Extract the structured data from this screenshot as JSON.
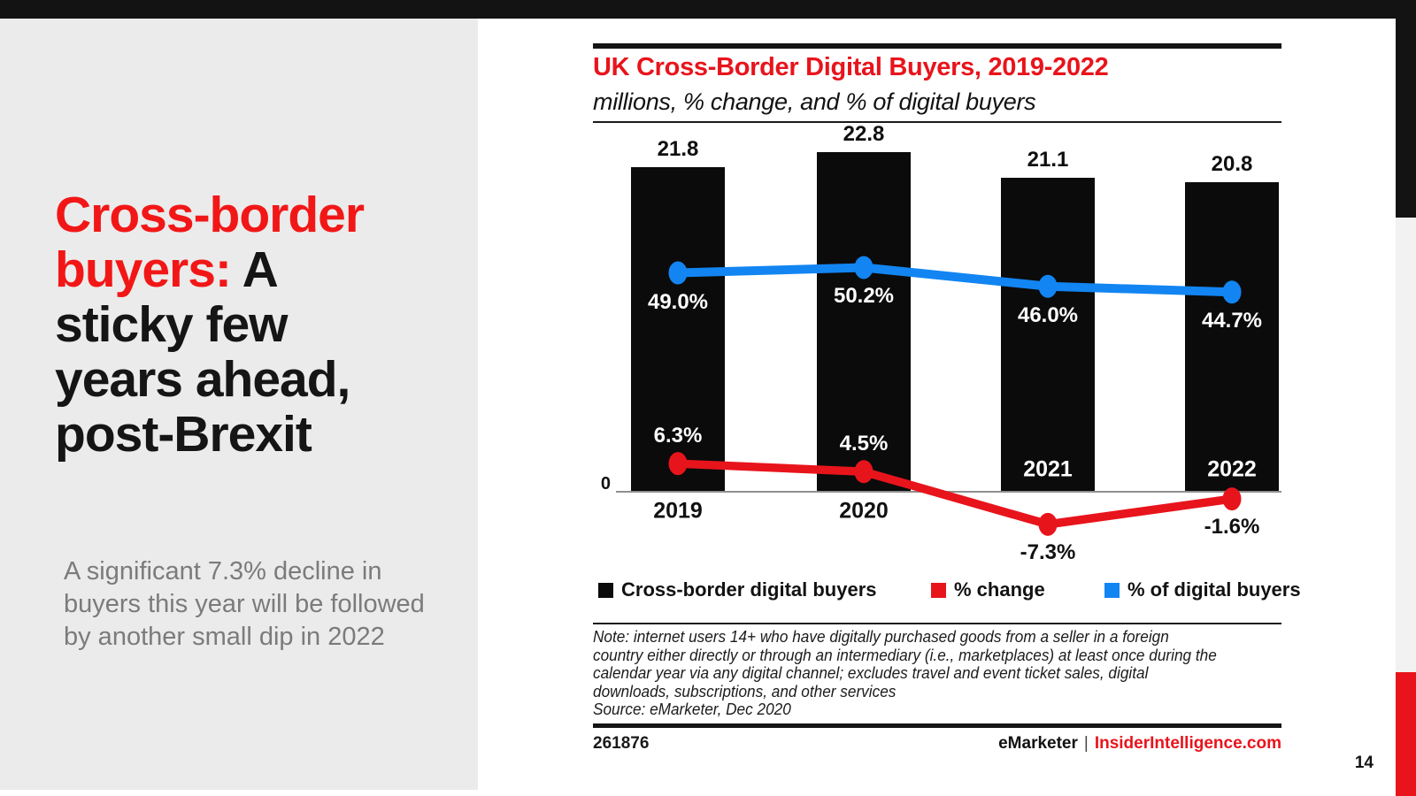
{
  "page": {
    "number": "14"
  },
  "left_panel": {
    "title_lines": [
      [
        {
          "text": "Cross-border",
          "color": "red"
        }
      ],
      [
        {
          "text": "buyers: ",
          "color": "red"
        },
        {
          "text": "A",
          "color": "black"
        }
      ],
      [
        {
          "text": "sticky few",
          "color": "black"
        }
      ],
      [
        {
          "text": "years ahead,",
          "color": "black"
        }
      ],
      [
        {
          "text": "post-Brexit",
          "color": "black"
        }
      ]
    ],
    "subtitle_lines": [
      "A significant 7.3% decline in",
      "buyers this year will be followed",
      "by another small dip in 2022"
    ]
  },
  "chart": {
    "title": "UK Cross-Border Digital Buyers, 2019-2022",
    "subtitle": "millions, % change, and % of digital buyers",
    "zero_label": "0",
    "legend": [
      {
        "label": "Cross-border digital buyers",
        "color": "#0b0b0b"
      },
      {
        "label": "% change",
        "color": "#e8141c"
      },
      {
        "label": "% of digital buyers",
        "color": "#1285f2"
      }
    ],
    "note_lines": [
      "Note: internet users 14+ who have digitally purchased goods from a seller in a foreign",
      "country either directly or through an intermediary (i.e., marketplaces) at least once during the",
      "calendar year via any digital channel; excludes travel and event ticket sales, digital",
      "downloads, subscriptions, and other services",
      "Source: eMarketer, Dec 2020"
    ],
    "chart_id": "261876",
    "brand_black": "eMarketer",
    "brand_sep": "|",
    "brand_red": "InsiderIntelligence.com"
  },
  "chart_data": {
    "type": "bar+line",
    "title": "UK Cross-Border Digital Buyers, 2019-2022",
    "subtitle": "millions, % change, and % of digital buyers",
    "categories": [
      "2019",
      "2020",
      "2021",
      "2022"
    ],
    "series": [
      {
        "name": "Cross-border digital buyers",
        "type": "bar",
        "unit": "millions",
        "color": "#0b0b0b",
        "values": [
          21.8,
          22.8,
          21.1,
          20.8
        ],
        "labels": [
          "21.8",
          "22.8",
          "21.1",
          "20.8"
        ]
      },
      {
        "name": "% change",
        "type": "line",
        "unit": "%",
        "color": "#e8141c",
        "values": [
          6.3,
          4.5,
          -7.3,
          -1.6
        ],
        "labels": [
          "6.3%",
          "4.5%",
          "-7.3%",
          "-1.6%"
        ]
      },
      {
        "name": "% of digital buyers",
        "type": "line",
        "unit": "%",
        "color": "#1285f2",
        "values": [
          49.0,
          50.2,
          46.0,
          44.7
        ],
        "labels": [
          "49.0%",
          "50.2%",
          "46.0%",
          "44.7%"
        ]
      }
    ],
    "left_axis_zero_label": "0",
    "grid": false,
    "legend_position": "bottom"
  },
  "colors": {
    "accent_red": "#e8141c",
    "accent_blue": "#1285f2",
    "panel_gray": "#ebebeb",
    "stripe_gray": "#f2f2f2",
    "bar_black": "#0b0b0b",
    "title_red": "#f21717",
    "subtitle_gray": "#7b7b7b"
  }
}
